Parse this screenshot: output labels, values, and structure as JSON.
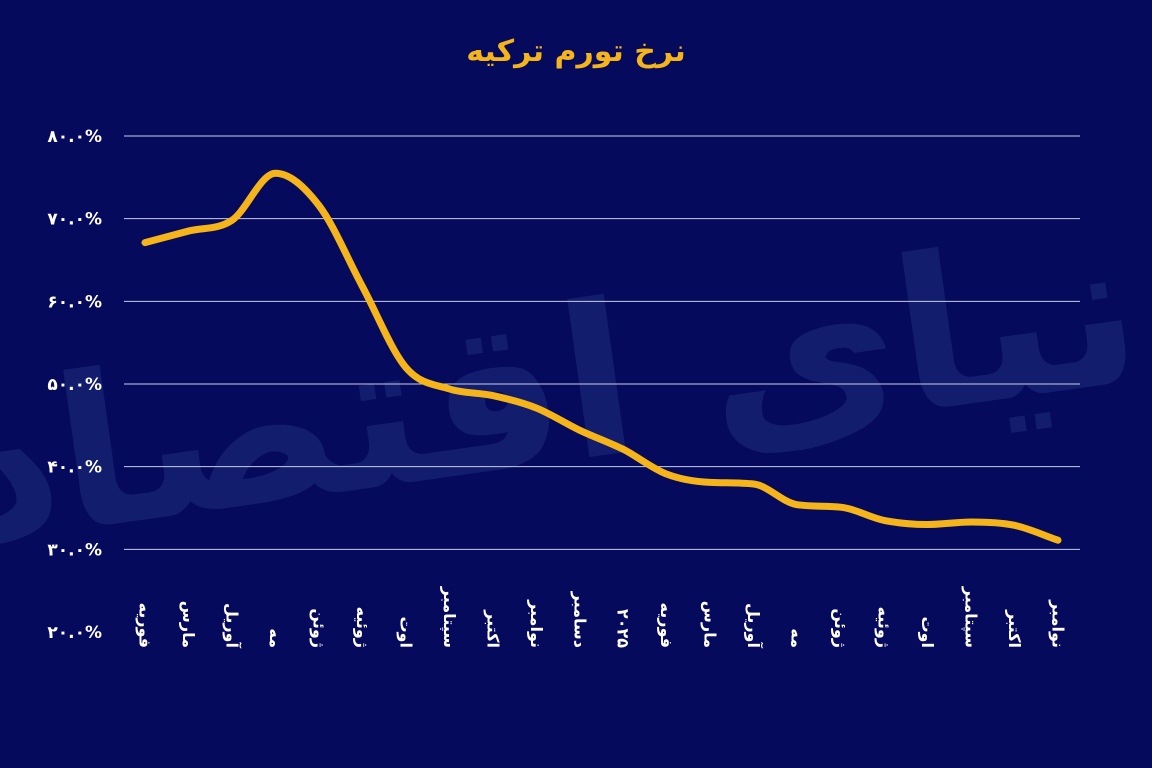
{
  "colors": {
    "background": "#060a5c",
    "line": "#f5b51a",
    "title": "#f5b51a",
    "grid": "#c9cce6",
    "tick_text": "#ffffff",
    "watermark": "#1c2f7c"
  },
  "watermark_text": "دنیای اقتصاد",
  "chart_data": {
    "type": "line",
    "title": "نرخ تورم ترکیه",
    "xlabel": "",
    "ylabel": "",
    "ylim": [
      20,
      80
    ],
    "y_ticks": [
      20,
      30,
      40,
      50,
      60,
      70,
      80
    ],
    "y_tick_labels": [
      "۲۰.۰%",
      "۳۰.۰%",
      "۴۰.۰%",
      "۵۰.۰%",
      "۶۰.۰%",
      "۷۰.۰%",
      "۸۰.۰%"
    ],
    "grid": true,
    "legend": "none",
    "categories": [
      "فوریه",
      "مارس",
      "آوریل",
      "مه",
      "ژوئن",
      "ژوئیه",
      "اوت",
      "سپتامبر",
      "اکتبر",
      "نوامبر",
      "دسامبر",
      "۲۰۲۵",
      "فوریه",
      "مارس",
      "آوریل",
      "مه",
      "ژوئن",
      "ژوئیه",
      "اوت",
      "سپتامبر",
      "اکتبر",
      "نوامبر"
    ],
    "series": [
      {
        "values": [
          67.1,
          68.5,
          69.8,
          75.5,
          71.6,
          61.8,
          52.0,
          49.4,
          48.6,
          47.1,
          44.4,
          42.1,
          39.1,
          38.1,
          37.9,
          35.4,
          35.1,
          33.5,
          33.0,
          33.3,
          32.9,
          31.1
        ]
      }
    ]
  }
}
